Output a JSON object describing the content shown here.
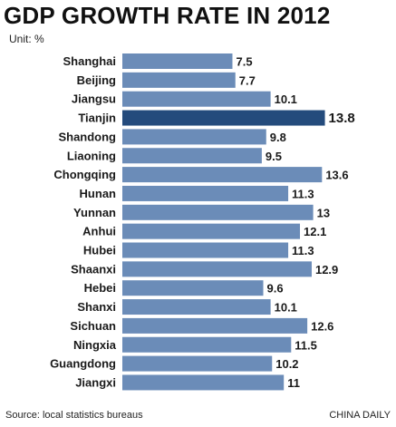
{
  "header": {
    "title": "GDP GROWTH RATE IN 2012",
    "unit": "Unit: %"
  },
  "footer": {
    "source": "Source: local statistics bureaus",
    "credit": "CHINA DAILY"
  },
  "colors": {
    "bar": "#6b8cb8",
    "highlight": "#244b7c"
  },
  "chart_data": {
    "type": "bar",
    "orientation": "horizontal",
    "title": "GDP GROWTH RATE IN 2012",
    "unit": "%",
    "categories": [
      "Shanghai",
      "Beijing",
      "Jiangsu",
      "Tianjin",
      "Shandong",
      "Liaoning",
      "Chongqing",
      "Hunan",
      "Yunnan",
      "Anhui",
      "Hubei",
      "Shaanxi",
      "Hebei",
      "Shanxi",
      "Sichuan",
      "Ningxia",
      "Guangdong",
      "Jiangxi"
    ],
    "values": [
      7.5,
      7.7,
      10.1,
      13.8,
      9.8,
      9.5,
      13.6,
      11.3,
      13,
      12.1,
      11.3,
      12.9,
      9.6,
      10.1,
      12.6,
      11.5,
      10.2,
      11
    ],
    "value_labels": [
      "7.5",
      "7.7",
      "10.1",
      "13.8",
      "9.8",
      "9.5",
      "13.6",
      "11.3",
      "13",
      "12.1",
      "11.3",
      "12.9",
      "9.6",
      "10.1",
      "12.6",
      "11.5",
      "10.2",
      "11"
    ],
    "highlight": "Tianjin",
    "axis_visible": false,
    "grid": false
  }
}
